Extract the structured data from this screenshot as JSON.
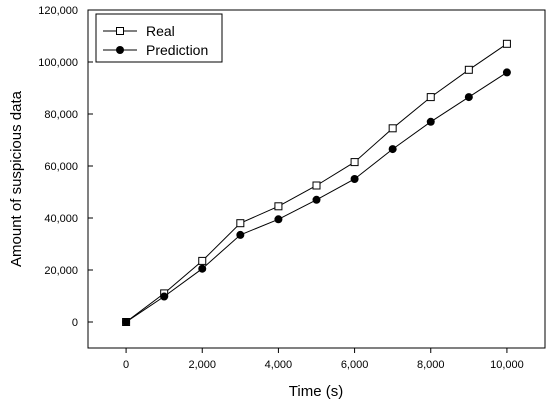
{
  "chart_data": {
    "type": "line",
    "title": "",
    "xlabel": "Time (s)",
    "ylabel": "Amount of suspicious data",
    "xlim": [
      -1000,
      11000
    ],
    "ylim": [
      -10000,
      120000
    ],
    "xticks": [
      0,
      2000,
      4000,
      6000,
      8000,
      10000
    ],
    "xtick_labels": [
      "0",
      "2,000",
      "4,000",
      "6,000",
      "8,000",
      "10,000"
    ],
    "yticks": [
      0,
      20000,
      40000,
      60000,
      80000,
      100000,
      120000
    ],
    "ytick_labels": [
      "0",
      "20,000",
      "40,000",
      "60,000",
      "80,000",
      "100,000",
      "120,000"
    ],
    "grid": false,
    "legend_position": "top-left",
    "x": [
      0,
      1000,
      2000,
      3000,
      4000,
      5000,
      6000,
      7000,
      8000,
      9000,
      10000
    ],
    "series": [
      {
        "name": "Real",
        "marker": "open-square",
        "values": [
          0,
          11000,
          23500,
          38000,
          44500,
          52500,
          61500,
          74500,
          86500,
          97000,
          107000
        ]
      },
      {
        "name": "Prediction",
        "marker": "filled-circle",
        "values": [
          0,
          9800,
          20500,
          33500,
          39500,
          47000,
          55000,
          66500,
          77000,
          86500,
          96000
        ]
      }
    ]
  }
}
